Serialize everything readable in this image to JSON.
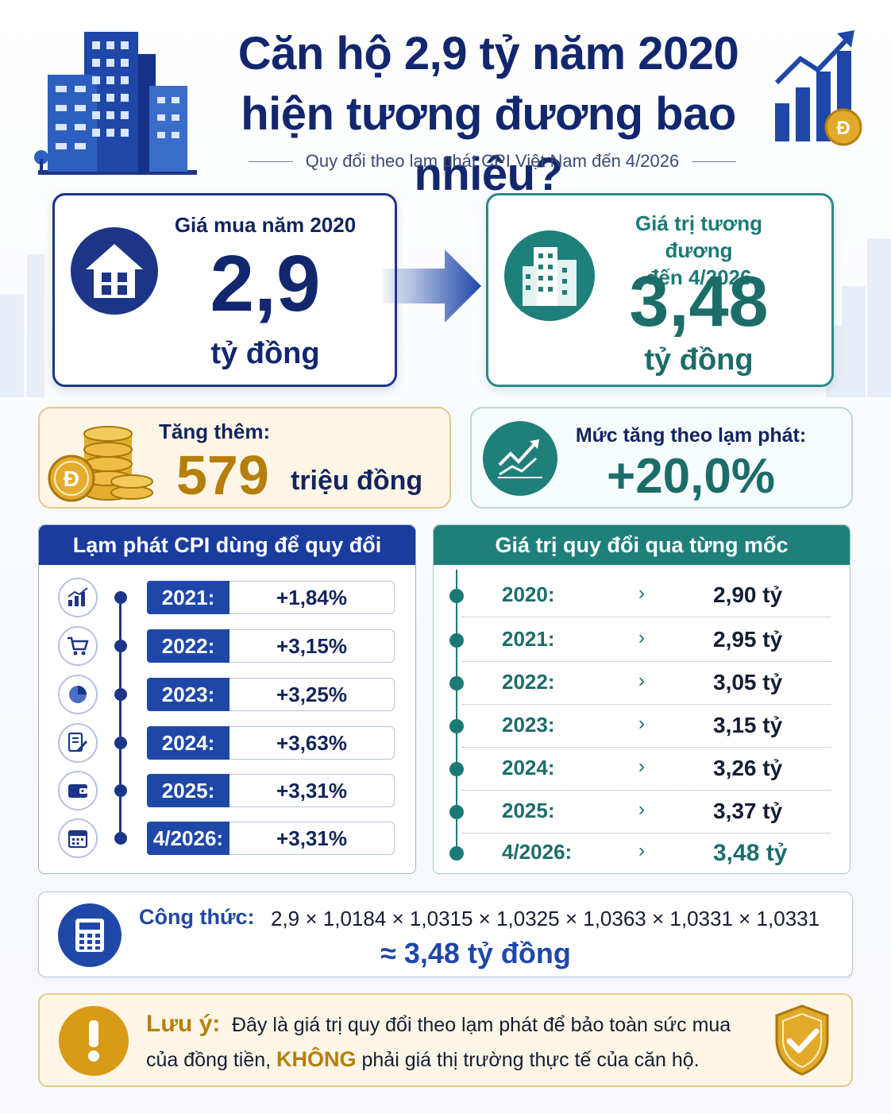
{
  "header": {
    "title_line1": "Căn hộ 2,9 tỷ năm 2020",
    "title_line2": "hiện tương đương bao nhiêu?",
    "subtitle": "Quy đổi theo lạm phát CPI Việt Nam đến 4/2026"
  },
  "purchase": {
    "label": "Giá mua năm 2020",
    "value": "2,9",
    "unit": "tỷ đồng"
  },
  "equivalent": {
    "label_line1": "Giá trị tương đương",
    "label_line2": "đến 4/2026",
    "value": "3,48",
    "unit": "tỷ đồng"
  },
  "increase": {
    "label": "Tăng thêm:",
    "value": "579",
    "unit": "triệu đồng"
  },
  "inflation_rate": {
    "label": "Mức tăng theo lạm phát:",
    "value": "+20,0%"
  },
  "cpi_panel": {
    "title": "Lạm phát CPI dùng để quy đổi",
    "rows": [
      {
        "year": "2021:",
        "value": "+1,84%",
        "icon": "bar-chart-icon"
      },
      {
        "year": "2022:",
        "value": "+3,15%",
        "icon": "shopping-cart-icon"
      },
      {
        "year": "2023:",
        "value": "+3,25%",
        "icon": "pie-chart-icon"
      },
      {
        "year": "2024:",
        "value": "+3,63%",
        "icon": "document-pen-icon"
      },
      {
        "year": "2025:",
        "value": "+3,31%",
        "icon": "wallet-icon"
      },
      {
        "year": "4/2026:",
        "value": "+3,31%",
        "icon": "calendar-icon"
      }
    ]
  },
  "steps_panel": {
    "title": "Giá trị quy đổi qua từng mốc",
    "arrow": "›",
    "rows": [
      {
        "year": "2020:",
        "value": "2,90 tỷ"
      },
      {
        "year": "2021:",
        "value": "2,95 tỷ"
      },
      {
        "year": "2022:",
        "value": "3,05 tỷ"
      },
      {
        "year": "2023:",
        "value": "3,15 tỷ"
      },
      {
        "year": "2024:",
        "value": "3,26 tỷ"
      },
      {
        "year": "2025:",
        "value": "3,37 tỷ"
      },
      {
        "year": "4/2026:",
        "value": "3,48 tỷ"
      }
    ]
  },
  "formula": {
    "label": "Công thức:",
    "expression": "2,9 × 1,0184 × 1,0315 × 1,0325 × 1,0363 × 1,0331 × 1,0331",
    "result": "≈ 3,48 tỷ đồng"
  },
  "note": {
    "label": "Lưu ý:",
    "text_part1": "Đây là giá trị quy đổi theo lạm phát để bảo toàn sức mua",
    "text_part2": "của đồng tiền,",
    "emphasis": "KHÔNG",
    "text_part3": "phải giá thị trường thực tế của căn hộ."
  },
  "coin_symbol": "Đ",
  "colors": {
    "navy": "#12276e",
    "blue": "#1f47a8",
    "teal": "#1c7a76",
    "gold": "#b8860b",
    "gold_bg": "#fdf6e6"
  }
}
